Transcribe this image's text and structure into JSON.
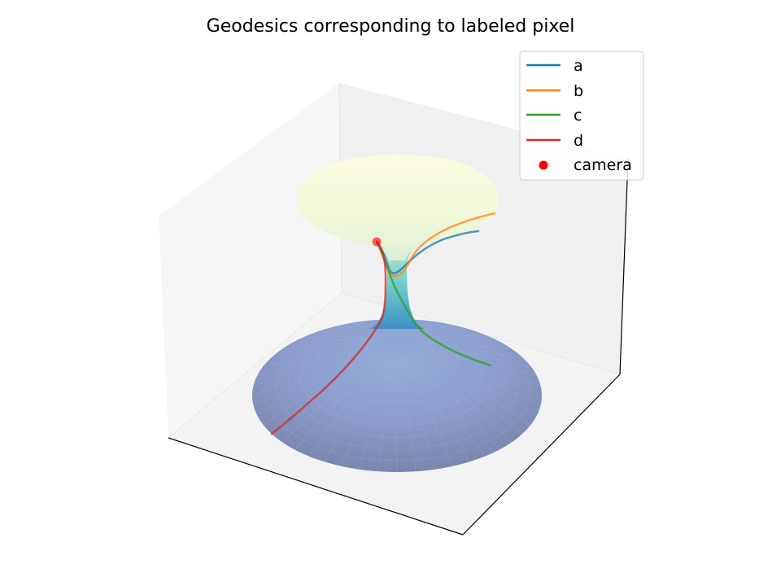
{
  "chart_data": {
    "type": "line",
    "subtype": "3d-surface-with-geodesics",
    "title": "Geodesics corresponding to labeled pixel",
    "xlabel": "",
    "ylabel": "",
    "zlabel": "",
    "grid": false,
    "axes_ticks_visible": false,
    "legend_position": "top-right",
    "surface": {
      "shape": "wormhole (hyperboloid-like funnel with a narrow throat)",
      "colormap": "YlGnBu (yellow at top funnel, blue at bottom disk)"
    },
    "series": [
      {
        "name": "a",
        "color": "#1f77b4",
        "kind": "line"
      },
      {
        "name": "b",
        "color": "#ff7f0e",
        "kind": "line"
      },
      {
        "name": "c",
        "color": "#2ca02c",
        "kind": "line"
      },
      {
        "name": "d",
        "color": "#d62728",
        "kind": "line"
      },
      {
        "name": "camera",
        "color": "#ff0000",
        "kind": "point"
      }
    ]
  },
  "colors": {
    "pane_left": "#f6f6f6",
    "pane_back": "#f0f0f0",
    "pane_floor": "#f3f3f3",
    "axis_line": "#000000",
    "camera": "#ff0000"
  }
}
